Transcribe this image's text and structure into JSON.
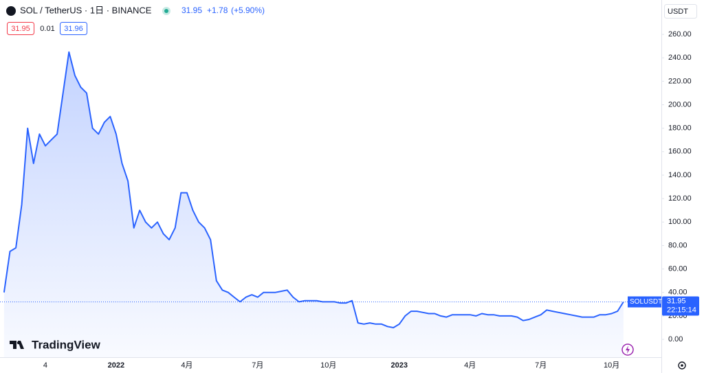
{
  "chart_data": {
    "type": "area",
    "title": "SOL / TetherUS · 1日 · BINANCE",
    "change": "+1.78",
    "change_pct": "(+5.90%)",
    "bid": 31.95,
    "spread": 0.01,
    "ask": 31.96,
    "currency": "USDT",
    "symbol": "SOLUSDT",
    "countdown": "22:15:14",
    "brand": "TradingView",
    "categories": [
      null,
      null,
      null,
      null,
      null,
      null,
      null,
      "4",
      null,
      null,
      null,
      null,
      null,
      null,
      null,
      null,
      null,
      null,
      null,
      "2022",
      null,
      null,
      null,
      null,
      null,
      null,
      null,
      null,
      null,
      null,
      null,
      "4月",
      null,
      null,
      null,
      null,
      null,
      null,
      null,
      null,
      null,
      null,
      null,
      "7月",
      null,
      null,
      null,
      null,
      null,
      null,
      null,
      null,
      null,
      null,
      null,
      "10月",
      null,
      null,
      null,
      null,
      null,
      null,
      null,
      null,
      null,
      null,
      null,
      "2023",
      null,
      null,
      null,
      null,
      null,
      null,
      null,
      null,
      null,
      null,
      null,
      "4月",
      null,
      null,
      null,
      null,
      null,
      null,
      null,
      null,
      null,
      null,
      null,
      "7月",
      null,
      null,
      null,
      null,
      null,
      null,
      null,
      null,
      null,
      null,
      null,
      "10月",
      null,
      null
    ],
    "series": [
      {
        "name": "SOLUSDT",
        "color": "#2962ff",
        "values": [
          40,
          75,
          78,
          115,
          180,
          150,
          175,
          165,
          170,
          175,
          210,
          245,
          225,
          215,
          210,
          180,
          175,
          185,
          190,
          175,
          150,
          135,
          95,
          110,
          100,
          95,
          100,
          90,
          85,
          95,
          125,
          125,
          110,
          100,
          95,
          85,
          50,
          42,
          40,
          36,
          32,
          36,
          38,
          36,
          40,
          40,
          40,
          41,
          42,
          36,
          32,
          33,
          33,
          33,
          32,
          32,
          32,
          31,
          31,
          33,
          14,
          13,
          14,
          13,
          13,
          11,
          10,
          13,
          20,
          24,
          24,
          23,
          22,
          22,
          20,
          19,
          21,
          21,
          21,
          21,
          20,
          22,
          21,
          21,
          20,
          20,
          20,
          19,
          16,
          17,
          19,
          21,
          25,
          24,
          23,
          22,
          21,
          20,
          19,
          19,
          19,
          21,
          21,
          22,
          24,
          31.95
        ]
      }
    ],
    "ylim": [
      -15.2,
      289.3
    ],
    "yticks": [
      {
        "value": 0,
        "label": "0.00"
      },
      {
        "value": 20,
        "label": "20.00"
      },
      {
        "value": 40,
        "label": "40.00"
      },
      {
        "value": 60,
        "label": "60.00"
      },
      {
        "value": 80,
        "label": "80.00"
      },
      {
        "value": 100,
        "label": "100.00"
      },
      {
        "value": 120,
        "label": "120.00"
      },
      {
        "value": 140,
        "label": "140.00"
      },
      {
        "value": 160,
        "label": "160.00"
      },
      {
        "value": 180,
        "label": "180.00"
      },
      {
        "value": 200,
        "label": "200.00"
      },
      {
        "value": 220,
        "label": "220.00"
      },
      {
        "value": 240,
        "label": "240.00"
      },
      {
        "value": 260,
        "label": "260.00"
      }
    ],
    "grid": false
  }
}
